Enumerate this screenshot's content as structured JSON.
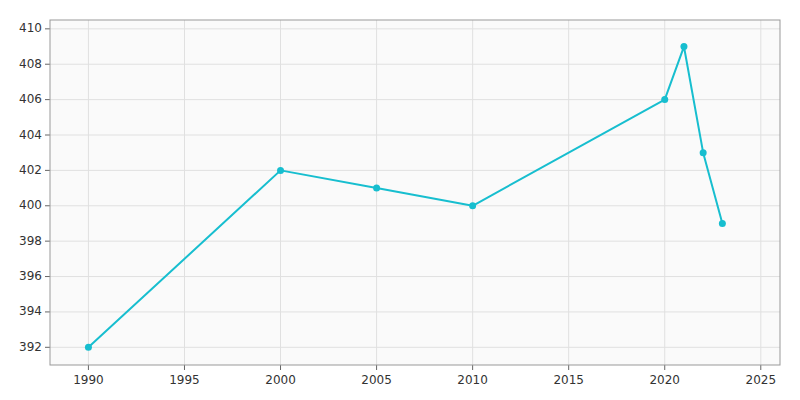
{
  "chart_data": {
    "type": "line",
    "x": [
      1990,
      2000,
      2005,
      2010,
      2020,
      2021,
      2022,
      2023
    ],
    "values": [
      392,
      402,
      401,
      400,
      406,
      409,
      403,
      399
    ],
    "color": "#17BECF",
    "marker": "circle",
    "xlim": [
      1988,
      2026
    ],
    "ylim": [
      391,
      410.5
    ],
    "xticks": [
      1990,
      1995,
      2000,
      2005,
      2010,
      2015,
      2020,
      2025
    ],
    "yticks": [
      392,
      394,
      396,
      398,
      400,
      402,
      404,
      406,
      408,
      410
    ],
    "grid": true
  }
}
